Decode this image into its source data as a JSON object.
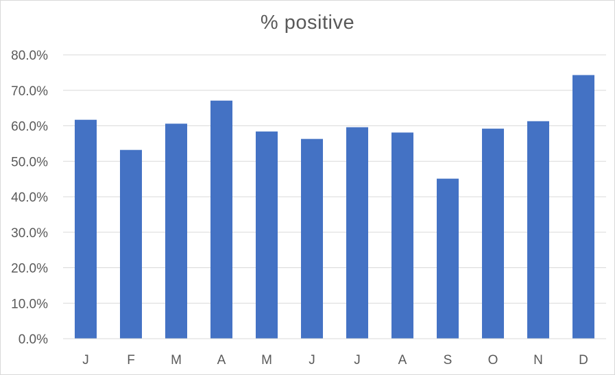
{
  "chart_data": {
    "type": "bar",
    "title": "% positive",
    "xlabel": "",
    "ylabel": "",
    "categories": [
      "J",
      "F",
      "M",
      "A",
      "M",
      "J",
      "J",
      "A",
      "S",
      "O",
      "N",
      "D"
    ],
    "values": [
      61.7,
      53.2,
      60.6,
      67.1,
      58.4,
      56.3,
      59.6,
      58.1,
      45.1,
      59.2,
      61.3,
      74.3
    ],
    "ylim": [
      0,
      80
    ],
    "yticks": [
      "0.0%",
      "10.0%",
      "20.0%",
      "30.0%",
      "40.0%",
      "50.0%",
      "60.0%",
      "70.0%",
      "80.0%"
    ],
    "grid": true,
    "legend": "none",
    "bar_color": "#4472c4",
    "grid_color": "#d9d9d9"
  }
}
